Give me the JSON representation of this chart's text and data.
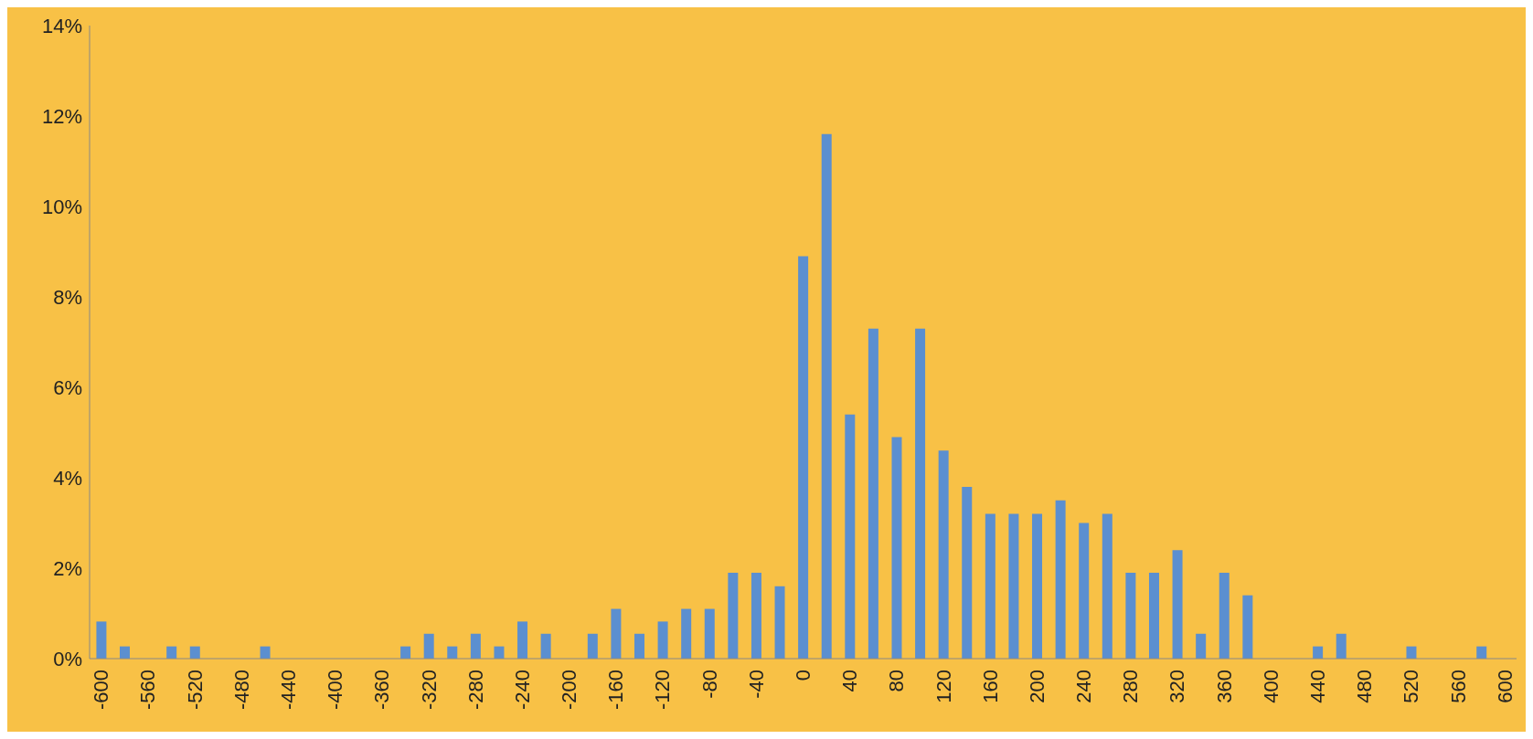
{
  "chart_data": {
    "type": "bar",
    "categories": [
      "-600",
      null,
      "-560",
      null,
      "-520",
      null,
      "-480",
      null,
      "-440",
      null,
      "-400",
      null,
      "-360",
      null,
      "-320",
      null,
      "-280",
      null,
      "-240",
      null,
      "-200",
      null,
      "-160",
      null,
      "-120",
      null,
      "-80",
      null,
      "-40",
      null,
      "0",
      null,
      "40",
      null,
      "80",
      null,
      "120",
      null,
      "160",
      null,
      "200",
      null,
      "240",
      null,
      "280",
      null,
      "320",
      null,
      "360",
      null,
      "400",
      null,
      "440",
      null,
      "480",
      null,
      "520",
      null,
      "560",
      null,
      "600"
    ],
    "values": [
      0.82,
      0.27,
      0,
      0.27,
      0.27,
      0,
      0,
      0.27,
      0,
      0,
      0,
      0,
      0,
      0.27,
      0.55,
      0.27,
      0.55,
      0.27,
      0.82,
      0.55,
      0,
      0.55,
      1.1,
      0.55,
      0.82,
      1.1,
      1.1,
      1.9,
      1.9,
      1.6,
      8.9,
      11.6,
      5.4,
      7.3,
      4.9,
      7.3,
      4.6,
      3.8,
      3.2,
      3.2,
      3.2,
      3.5,
      3.0,
      3.2,
      1.9,
      1.9,
      2.4,
      0.55,
      1.9,
      1.4,
      0,
      0,
      0.27,
      0.55,
      0,
      0,
      0.27,
      0,
      0,
      0.27,
      0
    ],
    "color": "#5b8fd0",
    "ylim": [
      0,
      14
    ],
    "yticks": [
      {
        "value": 0,
        "label": "0%"
      },
      {
        "value": 2,
        "label": "2%"
      },
      {
        "value": 4,
        "label": "4%"
      },
      {
        "value": 6,
        "label": "6%"
      },
      {
        "value": 8,
        "label": "8%"
      },
      {
        "value": 10,
        "label": "10%"
      },
      {
        "value": 12,
        "label": "12%"
      },
      {
        "value": 14,
        "label": "14%"
      }
    ],
    "grid": false,
    "legend": false
  }
}
